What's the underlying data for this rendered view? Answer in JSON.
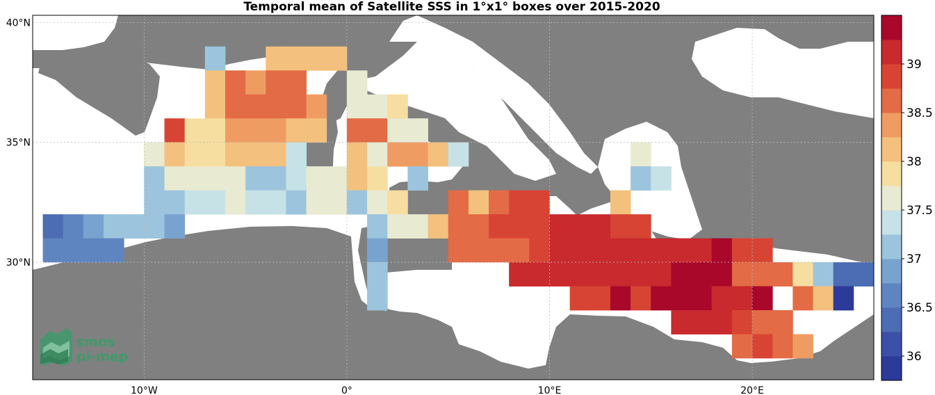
{
  "title": "Temporal mean of Satellite SSS in 1°x1° boxes over 2015-2020",
  "logo": {
    "line1": "smos",
    "line2": "pi-mep"
  },
  "axes": {
    "x_ticks": [
      {
        "value": -10,
        "label": "10°W"
      },
      {
        "value": 0,
        "label": "0°"
      },
      {
        "value": 10,
        "label": "10°E"
      },
      {
        "value": 20,
        "label": "20°E"
      }
    ],
    "y_ticks": [
      {
        "value": 40,
        "label": "40°N"
      },
      {
        "value": 35,
        "label": "35°N"
      },
      {
        "value": 30,
        "label": "30°N"
      }
    ],
    "lon_range": [
      -15.5,
      26
    ],
    "lat_range": [
      25.1,
      40.3
    ]
  },
  "colors": {
    "land": "#808080",
    "sea": "#ffffff",
    "colorscale": [
      "#2c3a99",
      "#3b50a8",
      "#4c6cb3",
      "#5f85c0",
      "#79a3cf",
      "#9cc4dd",
      "#c6e2e7",
      "#e8ead2",
      "#f6dea0",
      "#f4c07d",
      "#ef9c63",
      "#e36b45",
      "#d84433",
      "#c92a2e",
      "#a9082b"
    ]
  },
  "colorbar": {
    "min": 35.75,
    "max": 39.5,
    "ticks": [
      {
        "value": 36,
        "label": "36"
      },
      {
        "value": 36.5,
        "label": "36.5"
      },
      {
        "value": 37,
        "label": "37"
      },
      {
        "value": 37.5,
        "label": "37.5"
      },
      {
        "value": 38,
        "label": "38"
      },
      {
        "value": 38.5,
        "label": "38.5"
      },
      {
        "value": 39,
        "label": "39"
      }
    ]
  },
  "chart_data": {
    "type": "heatmap",
    "title": "Temporal mean of Satellite SSS in 1°x1° boxes over 2015-2020",
    "cell_size_deg": 1,
    "cells": [
      {
        "lon": -6.5,
        "lat": 38.5,
        "v": 37.0
      },
      {
        "lon": -3.5,
        "lat": 38.5,
        "v": 38.0
      },
      {
        "lon": -2.5,
        "lat": 38.5,
        "v": 38.0
      },
      {
        "lon": -1.5,
        "lat": 38.5,
        "v": 38.0
      },
      {
        "lon": -0.5,
        "lat": 38.5,
        "v": 38.0
      },
      {
        "lon": -6.5,
        "lat": 37.5,
        "v": 38.0
      },
      {
        "lon": -5.5,
        "lat": 37.5,
        "v": 38.5
      },
      {
        "lon": -4.5,
        "lat": 37.5,
        "v": 38.3
      },
      {
        "lon": -3.5,
        "lat": 37.5,
        "v": 38.5
      },
      {
        "lon": -2.5,
        "lat": 37.5,
        "v": 38.5
      },
      {
        "lon": 0.5,
        "lat": 37.5,
        "v": 37.6
      },
      {
        "lon": -6.5,
        "lat": 36.5,
        "v": 38.2
      },
      {
        "lon": -5.5,
        "lat": 36.5,
        "v": 38.5
      },
      {
        "lon": -4.5,
        "lat": 36.5,
        "v": 38.6
      },
      {
        "lon": -3.5,
        "lat": 36.5,
        "v": 38.6
      },
      {
        "lon": -2.5,
        "lat": 36.5,
        "v": 38.6
      },
      {
        "lon": -1.5,
        "lat": 36.5,
        "v": 38.3
      },
      {
        "lon": 0.5,
        "lat": 36.5,
        "v": 37.6
      },
      {
        "lon": 1.5,
        "lat": 36.5,
        "v": 37.6
      },
      {
        "lon": 2.5,
        "lat": 36.5,
        "v": 37.8
      },
      {
        "lon": -8.5,
        "lat": 35.5,
        "v": 38.9
      },
      {
        "lon": -7.5,
        "lat": 35.5,
        "v": 37.9
      },
      {
        "lon": -6.5,
        "lat": 35.5,
        "v": 37.8
      },
      {
        "lon": -5.5,
        "lat": 35.5,
        "v": 38.3
      },
      {
        "lon": -4.5,
        "lat": 35.5,
        "v": 38.3
      },
      {
        "lon": -3.5,
        "lat": 35.5,
        "v": 38.3
      },
      {
        "lon": -2.5,
        "lat": 35.5,
        "v": 38.0
      },
      {
        "lon": -1.5,
        "lat": 35.5,
        "v": 38.0
      },
      {
        "lon": 0.5,
        "lat": 35.5,
        "v": 38.5
      },
      {
        "lon": 1.5,
        "lat": 35.5,
        "v": 38.5
      },
      {
        "lon": 2.5,
        "lat": 35.5,
        "v": 37.6
      },
      {
        "lon": 3.5,
        "lat": 35.5,
        "v": 37.5
      },
      {
        "lon": -9.5,
        "lat": 34.5,
        "v": 37.5
      },
      {
        "lon": -8.5,
        "lat": 34.5,
        "v": 38.0
      },
      {
        "lon": -7.5,
        "lat": 34.5,
        "v": 37.8
      },
      {
        "lon": -6.5,
        "lat": 34.5,
        "v": 37.9
      },
      {
        "lon": -5.5,
        "lat": 34.5,
        "v": 38.0
      },
      {
        "lon": -4.5,
        "lat": 34.5,
        "v": 38.0
      },
      {
        "lon": -3.5,
        "lat": 34.5,
        "v": 38.0
      },
      {
        "lon": -2.5,
        "lat": 34.5,
        "v": 37.4
      },
      {
        "lon": 0.5,
        "lat": 34.5,
        "v": 38.0
      },
      {
        "lon": 1.5,
        "lat": 34.5,
        "v": 37.7
      },
      {
        "lon": 2.5,
        "lat": 34.5,
        "v": 38.3
      },
      {
        "lon": 3.5,
        "lat": 34.5,
        "v": 38.3
      },
      {
        "lon": 4.5,
        "lat": 34.5,
        "v": 38.0
      },
      {
        "lon": 5.5,
        "lat": 34.5,
        "v": 37.3
      },
      {
        "lon": -9.5,
        "lat": 33.5,
        "v": 37.1
      },
      {
        "lon": -8.5,
        "lat": 33.5,
        "v": 37.6
      },
      {
        "lon": -7.5,
        "lat": 33.5,
        "v": 37.5
      },
      {
        "lon": -6.5,
        "lat": 33.5,
        "v": 37.7
      },
      {
        "lon": -5.5,
        "lat": 33.5,
        "v": 37.7
      },
      {
        "lon": -4.5,
        "lat": 33.5,
        "v": 37.2
      },
      {
        "lon": -3.5,
        "lat": 33.5,
        "v": 37.1
      },
      {
        "lon": -2.5,
        "lat": 33.5,
        "v": 37.4
      },
      {
        "lon": -1.5,
        "lat": 33.5,
        "v": 37.7
      },
      {
        "lon": -0.5,
        "lat": 33.5,
        "v": 37.6
      },
      {
        "lon": 0.5,
        "lat": 33.5,
        "v": 38.0
      },
      {
        "lon": 1.5,
        "lat": 33.5,
        "v": 37.8
      },
      {
        "lon": 3.5,
        "lat": 33.5,
        "v": 37.2
      },
      {
        "lon": -9.5,
        "lat": 32.5,
        "v": 37.1
      },
      {
        "lon": -8.5,
        "lat": 32.5,
        "v": 37.2
      },
      {
        "lon": -7.5,
        "lat": 32.5,
        "v": 37.3
      },
      {
        "lon": -6.5,
        "lat": 32.5,
        "v": 37.3
      },
      {
        "lon": -5.5,
        "lat": 32.5,
        "v": 37.5
      },
      {
        "lon": -4.5,
        "lat": 32.5,
        "v": 37.3
      },
      {
        "lon": -3.5,
        "lat": 32.5,
        "v": 37.3
      },
      {
        "lon": -2.5,
        "lat": 32.5,
        "v": 37.2
      },
      {
        "lon": -1.5,
        "lat": 32.5,
        "v": 37.7
      },
      {
        "lon": -0.5,
        "lat": 32.5,
        "v": 37.7
      },
      {
        "lon": 0.5,
        "lat": 32.5,
        "v": 37.2
      },
      {
        "lon": 1.5,
        "lat": 32.5,
        "v": 37.5
      },
      {
        "lon": 2.5,
        "lat": 32.5,
        "v": 37.8
      },
      {
        "lon": 5.5,
        "lat": 32.5,
        "v": 38.5
      },
      {
        "lon": 6.5,
        "lat": 32.5,
        "v": 38.2
      },
      {
        "lon": 7.5,
        "lat": 32.5,
        "v": 38.6
      },
      {
        "lon": 8.5,
        "lat": 32.5,
        "v": 38.8
      },
      {
        "lon": 9.5,
        "lat": 32.5,
        "v": 38.8
      },
      {
        "lon": 13.5,
        "lat": 32.5,
        "v": 38.0
      },
      {
        "lon": -14.5,
        "lat": 31.5,
        "v": 36.3
      },
      {
        "lon": -13.5,
        "lat": 31.5,
        "v": 36.5
      },
      {
        "lon": -12.5,
        "lat": 31.5,
        "v": 36.8
      },
      {
        "lon": -11.5,
        "lat": 31.5,
        "v": 37.0
      },
      {
        "lon": -10.5,
        "lat": 31.5,
        "v": 37.2
      },
      {
        "lon": -9.5,
        "lat": 31.5,
        "v": 37.1
      },
      {
        "lon": -8.5,
        "lat": 31.5,
        "v": 36.8
      },
      {
        "lon": 1.5,
        "lat": 31.5,
        "v": 37.1
      },
      {
        "lon": 2.5,
        "lat": 31.5,
        "v": 37.6
      },
      {
        "lon": 3.5,
        "lat": 31.5,
        "v": 37.6
      },
      {
        "lon": 4.5,
        "lat": 31.5,
        "v": 38.1
      },
      {
        "lon": 5.5,
        "lat": 31.5,
        "v": 38.5
      },
      {
        "lon": 6.5,
        "lat": 31.5,
        "v": 38.6
      },
      {
        "lon": 7.5,
        "lat": 31.5,
        "v": 38.8
      },
      {
        "lon": 8.5,
        "lat": 31.5,
        "v": 38.8
      },
      {
        "lon": 9.5,
        "lat": 31.5,
        "v": 38.8
      },
      {
        "lon": 10.5,
        "lat": 31.5,
        "v": 39.1
      },
      {
        "lon": 11.5,
        "lat": 31.5,
        "v": 39.1
      },
      {
        "lon": 12.5,
        "lat": 31.5,
        "v": 39.1
      },
      {
        "lon": 13.5,
        "lat": 31.5,
        "v": 38.8
      },
      {
        "lon": 14.5,
        "lat": 31.5,
        "v": 38.8
      },
      {
        "lon": -14.5,
        "lat": 30.5,
        "v": 36.6
      },
      {
        "lon": -13.5,
        "lat": 30.5,
        "v": 36.6
      },
      {
        "lon": -12.5,
        "lat": 30.5,
        "v": 36.7
      },
      {
        "lon": -11.5,
        "lat": 30.5,
        "v": 36.6
      },
      {
        "lon": 1.5,
        "lat": 30.5,
        "v": 36.8
      },
      {
        "lon": 5.5,
        "lat": 30.5,
        "v": 38.5
      },
      {
        "lon": 6.5,
        "lat": 30.5,
        "v": 38.6
      },
      {
        "lon": 7.5,
        "lat": 30.5,
        "v": 38.6
      },
      {
        "lon": 8.5,
        "lat": 30.5,
        "v": 38.6
      },
      {
        "lon": 9.5,
        "lat": 30.5,
        "v": 38.9
      },
      {
        "lon": 10.5,
        "lat": 30.5,
        "v": 39.1
      },
      {
        "lon": 11.5,
        "lat": 30.5,
        "v": 39.1
      },
      {
        "lon": 12.5,
        "lat": 30.5,
        "v": 39.2
      },
      {
        "lon": 13.5,
        "lat": 30.5,
        "v": 39.2
      },
      {
        "lon": 14.5,
        "lat": 30.5,
        "v": 39.2
      },
      {
        "lon": 15.5,
        "lat": 30.5,
        "v": 39.2
      },
      {
        "lon": 16.5,
        "lat": 30.5,
        "v": 39.2
      },
      {
        "lon": 17.5,
        "lat": 30.5,
        "v": 39.2
      },
      {
        "lon": 18.5,
        "lat": 30.5,
        "v": 39.4
      },
      {
        "lon": 19.5,
        "lat": 30.5,
        "v": 38.8
      },
      {
        "lon": 20.5,
        "lat": 30.5,
        "v": 38.8
      },
      {
        "lon": 1.5,
        "lat": 29.5,
        "v": 37.0
      },
      {
        "lon": 8.5,
        "lat": 29.5,
        "v": 39.1
      },
      {
        "lon": 9.5,
        "lat": 29.5,
        "v": 39.1
      },
      {
        "lon": 10.5,
        "lat": 29.5,
        "v": 39.1
      },
      {
        "lon": 11.5,
        "lat": 29.5,
        "v": 39.1
      },
      {
        "lon": 12.5,
        "lat": 29.5,
        "v": 39.1
      },
      {
        "lon": 13.5,
        "lat": 29.5,
        "v": 39.1
      },
      {
        "lon": 14.5,
        "lat": 29.5,
        "v": 39.1
      },
      {
        "lon": 15.5,
        "lat": 29.5,
        "v": 39.1
      },
      {
        "lon": 16.5,
        "lat": 29.5,
        "v": 39.4
      },
      {
        "lon": 17.5,
        "lat": 29.5,
        "v": 39.4
      },
      {
        "lon": 18.5,
        "lat": 29.5,
        "v": 39.4
      },
      {
        "lon": 19.5,
        "lat": 29.5,
        "v": 38.6
      },
      {
        "lon": 20.5,
        "lat": 29.5,
        "v": 38.6
      },
      {
        "lon": 21.5,
        "lat": 29.5,
        "v": 38.6
      },
      {
        "lon": 22.5,
        "lat": 29.5,
        "v": 37.8
      },
      {
        "lon": 23.5,
        "lat": 29.5,
        "v": 37.1
      },
      {
        "lon": 24.5,
        "lat": 29.5,
        "v": 36.4
      },
      {
        "lon": 25.5,
        "lat": 29.5,
        "v": 36.4
      },
      {
        "lon": 1.5,
        "lat": 28.5,
        "v": 37.1
      },
      {
        "lon": 11.5,
        "lat": 28.5,
        "v": 38.8
      },
      {
        "lon": 12.5,
        "lat": 28.5,
        "v": 38.8
      },
      {
        "lon": 13.5,
        "lat": 28.5,
        "v": 39.3
      },
      {
        "lon": 14.5,
        "lat": 28.5,
        "v": 38.9
      },
      {
        "lon": 15.5,
        "lat": 28.5,
        "v": 39.4
      },
      {
        "lon": 16.5,
        "lat": 28.5,
        "v": 39.4
      },
      {
        "lon": 17.5,
        "lat": 28.5,
        "v": 39.4
      },
      {
        "lon": 18.5,
        "lat": 28.5,
        "v": 39.1
      },
      {
        "lon": 19.5,
        "lat": 28.5,
        "v": 39.2
      },
      {
        "lon": 20.5,
        "lat": 28.5,
        "v": 39.4
      },
      {
        "lon": 22.5,
        "lat": 28.5,
        "v": 38.7
      },
      {
        "lon": 23.5,
        "lat": 28.5,
        "v": 38.0
      },
      {
        "lon": 24.5,
        "lat": 28.5,
        "v": 35.9
      },
      {
        "lon": 16.5,
        "lat": 27.5,
        "v": 39.2
      },
      {
        "lon": 17.5,
        "lat": 27.5,
        "v": 39.2
      },
      {
        "lon": 18.5,
        "lat": 27.5,
        "v": 39.2
      },
      {
        "lon": 19.5,
        "lat": 27.5,
        "v": 38.8
      },
      {
        "lon": 20.5,
        "lat": 27.5,
        "v": 38.7
      },
      {
        "lon": 21.5,
        "lat": 27.5,
        "v": 38.7
      },
      {
        "lon": 19.5,
        "lat": 26.5,
        "v": 38.7
      },
      {
        "lon": 20.5,
        "lat": 26.5,
        "v": 38.8
      },
      {
        "lon": 21.5,
        "lat": 26.5,
        "v": 38.6
      },
      {
        "lon": 22.5,
        "lat": 26.5,
        "v": 38.4
      },
      {
        "lon": 14.5,
        "lat": 34.5,
        "v": 37.5
      },
      {
        "lon": 14.5,
        "lat": 33.5,
        "v": 37.1
      },
      {
        "lon": 15.5,
        "lat": 33.5,
        "v": 37.3
      }
    ]
  }
}
